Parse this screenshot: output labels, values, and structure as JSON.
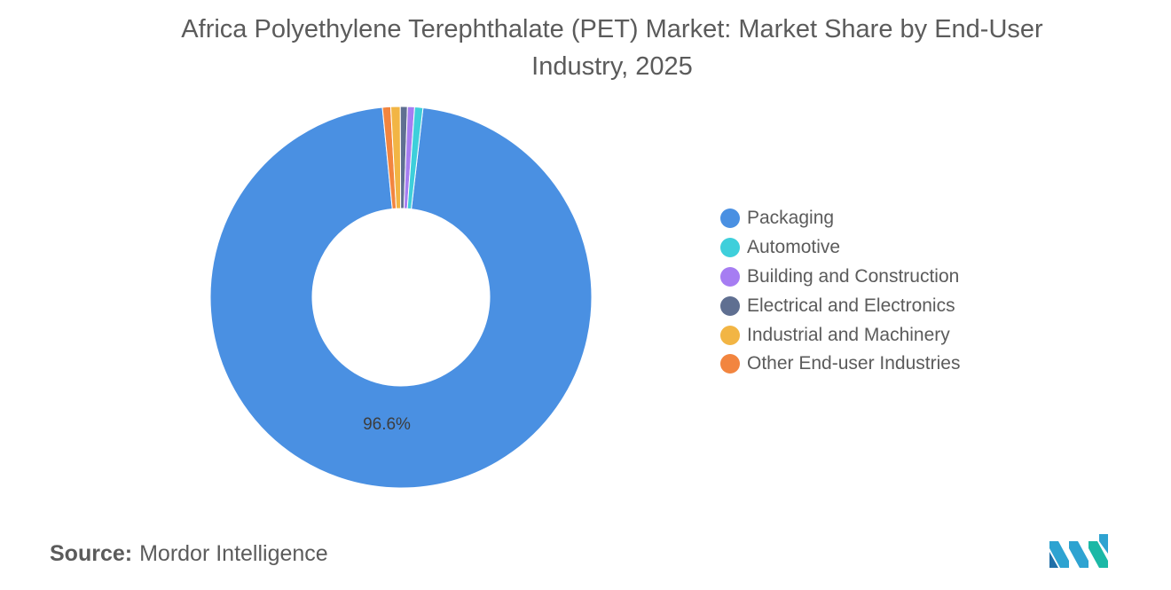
{
  "title": "Africa Polyethylene Terephthalate (PET) Market: Market Share by End-User Industry, 2025",
  "source": {
    "label": "Source:",
    "value": "Mordor Intelligence"
  },
  "chart_data": {
    "type": "pie",
    "style": "donut",
    "title": "Africa Polyethylene Terephthalate (PET) Market: Market Share by End-User Industry, 2025",
    "categories": [
      "Packaging",
      "Automotive",
      "Building and Construction",
      "Electrical and Electronics",
      "Industrial and Machinery",
      "Other End-user Industries"
    ],
    "values": [
      96.6,
      0.7,
      0.6,
      0.6,
      0.8,
      0.7
    ],
    "colors": [
      "#4a90e2",
      "#3ecfdb",
      "#a67df2",
      "#5f6f91",
      "#f2b544",
      "#f2853f"
    ],
    "data_labels": [
      "96.6%",
      "",
      "",
      "",
      "",
      ""
    ],
    "legend_position": "right"
  }
}
